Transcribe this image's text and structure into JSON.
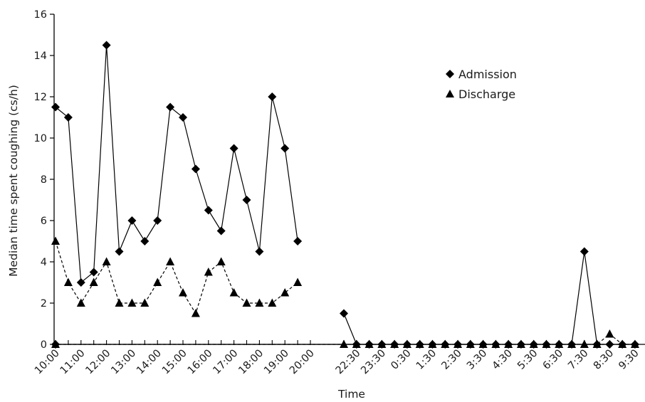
{
  "chart_data": {
    "type": "line",
    "xlabel": "Time",
    "ylabel": "Median time spent coughing (cs/h)",
    "ylim": [
      0,
      16
    ],
    "yticks": [
      0,
      2,
      4,
      6,
      8,
      10,
      12,
      14,
      16
    ],
    "grid": false,
    "legend_position": "top-right",
    "x_tick_labels": [
      "10:00",
      "11:00",
      "12:00",
      "13:00",
      "14:00",
      "15:00",
      "16:00",
      "17:00",
      "18:00",
      "19:00",
      "20:00",
      "22:30",
      "23:30",
      "0:30",
      "1:30",
      "2:30",
      "3:30",
      "4:30",
      "5:30",
      "6:30",
      "7:30",
      "8:30",
      "9:30"
    ],
    "series": [
      {
        "name": "Admission",
        "marker": "diamond",
        "line_style": "solid",
        "segments": [
          {
            "x": [
              "10:00",
              "10:30",
              "11:00",
              "11:30",
              "12:00",
              "12:30",
              "13:00",
              "13:30",
              "14:00",
              "14:30",
              "15:00",
              "15:30",
              "16:00",
              "16:30",
              "17:00",
              "17:30",
              "18:00",
              "18:30",
              "19:00",
              "19:30"
            ],
            "values": [
              11.5,
              11.0,
              3.0,
              3.5,
              14.5,
              4.5,
              6.0,
              5.0,
              6.0,
              11.5,
              11.0,
              8.5,
              6.5,
              5.5,
              9.5,
              7.0,
              4.5,
              12.0,
              9.5,
              5.0
            ]
          },
          {
            "x": [
              "22:00",
              "22:30",
              "23:00",
              "23:30",
              "0:00",
              "0:30",
              "1:00",
              "1:30",
              "2:00",
              "2:30",
              "3:00",
              "3:30",
              "4:00",
              "4:30",
              "5:00",
              "5:30",
              "6:00",
              "6:30",
              "7:00",
              "7:30",
              "8:00",
              "8:30",
              "9:00",
              "9:30",
              "10:00"
            ],
            "values": [
              1.5,
              0,
              0,
              0,
              0,
              0,
              0,
              0,
              0,
              0,
              0,
              0,
              0,
              0,
              0,
              0,
              0,
              0,
              0,
              4.5,
              0,
              0,
              0,
              0,
              0
            ]
          }
        ]
      },
      {
        "name": "Discharge",
        "marker": "triangle",
        "line_style": "dashed",
        "segments": [
          {
            "x": [
              "10:00",
              "10:30",
              "11:00",
              "11:30",
              "12:00",
              "12:30",
              "13:00",
              "13:30",
              "14:00",
              "14:30",
              "15:00",
              "15:30",
              "16:00",
              "16:30",
              "17:00",
              "17:30",
              "18:00",
              "18:30",
              "19:00",
              "19:30"
            ],
            "values": [
              5.0,
              3.0,
              2.0,
              3.0,
              4.0,
              2.0,
              2.0,
              2.0,
              3.0,
              4.0,
              2.5,
              1.5,
              3.5,
              4.0,
              2.5,
              2.0,
              2.0,
              2.0,
              2.5,
              3.0
            ]
          },
          {
            "x": [
              "22:00",
              "22:30",
              "23:00",
              "23:30",
              "0:00",
              "0:30",
              "1:00",
              "1:30",
              "2:00",
              "2:30",
              "3:00",
              "3:30",
              "4:00",
              "4:30",
              "5:00",
              "5:30",
              "6:00",
              "6:30",
              "7:00",
              "7:30",
              "8:00",
              "8:30",
              "9:00",
              "9:30",
              "10:00"
            ],
            "values": [
              0,
              0,
              0,
              0,
              0,
              0,
              0,
              0,
              0,
              0,
              0,
              0,
              0,
              0,
              0,
              0,
              0,
              0,
              0,
              0,
              0,
              0.5,
              0,
              0,
              0
            ]
          }
        ]
      }
    ]
  }
}
